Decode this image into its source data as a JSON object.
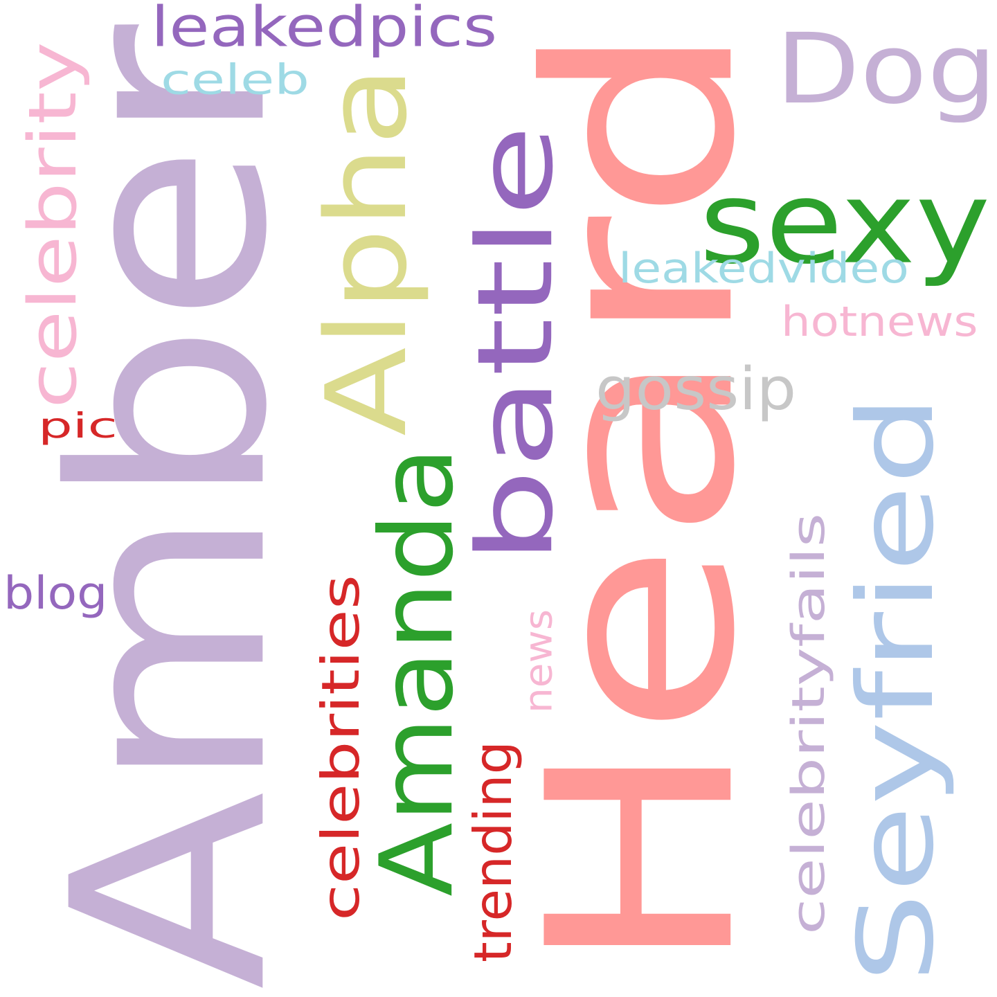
{
  "words": [
    {
      "id": "heard",
      "text": "Heard",
      "color": "#ff9896",
      "orientation": "vertical"
    },
    {
      "id": "amber",
      "text": "Amber",
      "color": "#c5b0d5",
      "orientation": "vertical"
    },
    {
      "id": "dog",
      "text": "Dog",
      "color": "#c5b0d5",
      "orientation": "horizontal"
    },
    {
      "id": "sexy",
      "text": "sexy",
      "color": "#2ca02c",
      "orientation": "horizontal"
    },
    {
      "id": "seyfried",
      "text": "Seyfried",
      "color": "#aec7e8",
      "orientation": "vertical"
    },
    {
      "id": "battle",
      "text": "battle",
      "color": "#9467bd",
      "orientation": "vertical"
    },
    {
      "id": "amanda",
      "text": "Amanda",
      "color": "#2ca02c",
      "orientation": "vertical"
    },
    {
      "id": "alpha",
      "text": "Alpha",
      "color": "#dbdb8d",
      "orientation": "vertical"
    },
    {
      "id": "leakedpics",
      "text": "leakedpics",
      "color": "#9467bd",
      "orientation": "horizontal"
    },
    {
      "id": "celebrity",
      "text": "celebrity",
      "color": "#f7b6d2",
      "orientation": "vertical"
    },
    {
      "id": "celeb",
      "text": "celeb",
      "color": "#9edae5",
      "orientation": "horizontal"
    },
    {
      "id": "leakedvideo",
      "text": "leakedvideo",
      "color": "#9edae5",
      "orientation": "horizontal"
    },
    {
      "id": "hotnews",
      "text": "hotnews",
      "color": "#f7b6d2",
      "orientation": "horizontal"
    },
    {
      "id": "gossip",
      "text": "gossip",
      "color": "#c7c7c7",
      "orientation": "horizontal"
    },
    {
      "id": "celebrities",
      "text": "celebrities",
      "color": "#d62728",
      "orientation": "vertical"
    },
    {
      "id": "celebrityfails",
      "text": "celebrityfails",
      "color": "#c5b0d5",
      "orientation": "vertical"
    },
    {
      "id": "news",
      "text": "news",
      "color": "#f7b6d2",
      "orientation": "vertical"
    },
    {
      "id": "trending",
      "text": "trending",
      "color": "#d62728",
      "orientation": "vertical"
    },
    {
      "id": "pic",
      "text": "pic",
      "color": "#d62728",
      "orientation": "horizontal"
    },
    {
      "id": "blog",
      "text": "blog",
      "color": "#9467bd",
      "orientation": "horizontal"
    }
  ]
}
